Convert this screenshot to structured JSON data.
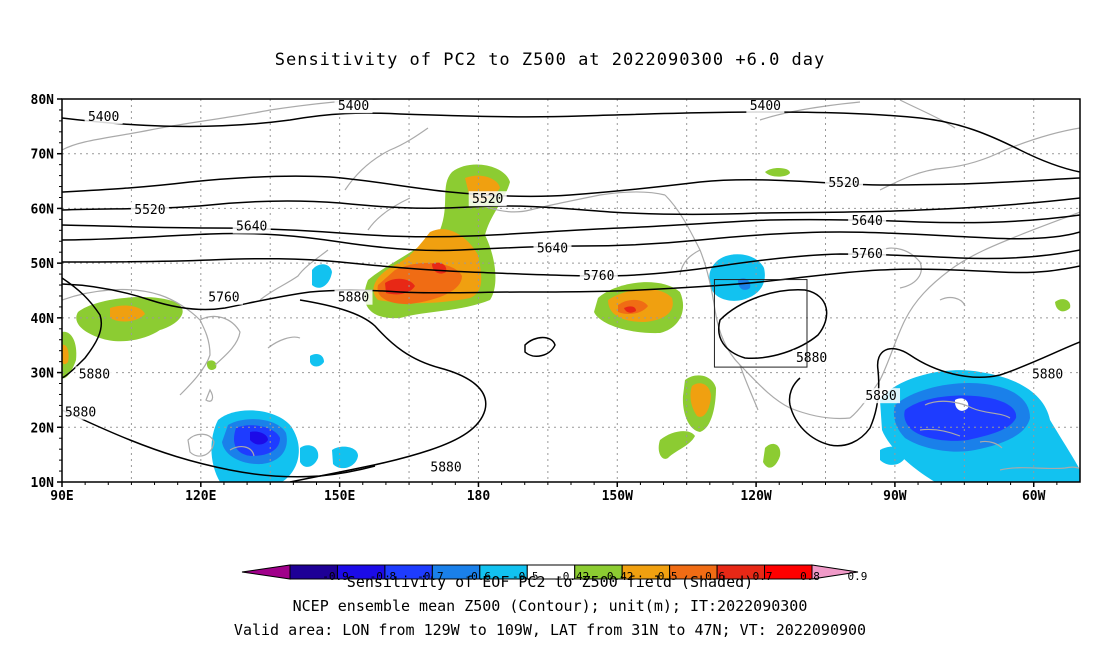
{
  "title": "Sensitivity of PC2 to Z500 at 2022090300 +6.0 day",
  "map": {
    "lat_labels": [
      "80N",
      "70N",
      "60N",
      "50N",
      "40N",
      "30N",
      "20N",
      "10N"
    ],
    "lon_labels": [
      "90E",
      "120E",
      "150E",
      "180",
      "150W",
      "120W",
      "90W",
      "60W"
    ],
    "extent": {
      "lon_min": 90,
      "lon_max": 310,
      "lat_min": 10,
      "lat_max": 80
    },
    "valid_box": {
      "lon_min": 231,
      "lon_max": 251,
      "lat_min": 31,
      "lat_max": 47
    },
    "contour_labels": [
      {
        "text": "5400",
        "lon": 99,
        "lat": 76.5
      },
      {
        "text": "5400",
        "lon": 153,
        "lat": 78.5
      },
      {
        "text": "5400",
        "lon": 242,
        "lat": 78.5
      },
      {
        "text": "5520",
        "lon": 109,
        "lat": 59.5
      },
      {
        "text": "5520",
        "lon": 182,
        "lat": 61.5
      },
      {
        "text": "5520",
        "lon": 259,
        "lat": 64.5
      },
      {
        "text": "5640",
        "lon": 131,
        "lat": 56.5
      },
      {
        "text": "5640",
        "lon": 196,
        "lat": 52.5
      },
      {
        "text": "5640",
        "lon": 264,
        "lat": 57.5
      },
      {
        "text": "5760",
        "lon": 125,
        "lat": 43.5
      },
      {
        "text": "5760",
        "lon": 206,
        "lat": 47.5
      },
      {
        "text": "5760",
        "lon": 264,
        "lat": 51.5
      },
      {
        "text": "5880",
        "lon": 153,
        "lat": 43.5
      },
      {
        "text": "5880",
        "lon": 97,
        "lat": 29.5
      },
      {
        "text": "5880",
        "lon": 94,
        "lat": 22.5
      },
      {
        "text": "5880",
        "lon": 173,
        "lat": 12.5
      },
      {
        "text": "5880",
        "lon": 252,
        "lat": 32.5
      },
      {
        "text": "5880",
        "lon": 267,
        "lat": 25.5
      },
      {
        "text": "5880",
        "lon": 303,
        "lat": 29.5
      }
    ]
  },
  "colorbar": {
    "ticks": [
      "-0.9",
      "-0.8",
      "-0.7",
      "-0.6",
      "-0.5",
      "-0.42",
      "0.42",
      "0.5",
      "0.6",
      "0.7",
      "0.8",
      "0.9"
    ],
    "colors": [
      "#a0008a",
      "#1e0096",
      "#1c0be8",
      "#1e3cff",
      "#1a80ea",
      "#12c2f0",
      "#ffffff",
      "#8ccc32",
      "#f0a010",
      "#f06c14",
      "#e82816",
      "#ff0000",
      "#f09ac8"
    ],
    "label": "Sensitivity of EOF PC2 to Z500 field (Shaded)"
  },
  "footer": {
    "line1": "NCEP ensemble mean Z500 (Contour); unit(m); IT:2022090300",
    "line2": "Valid area: LON from 129W to 109W, LAT from 31N to 47N; VT: 2022090900"
  }
}
